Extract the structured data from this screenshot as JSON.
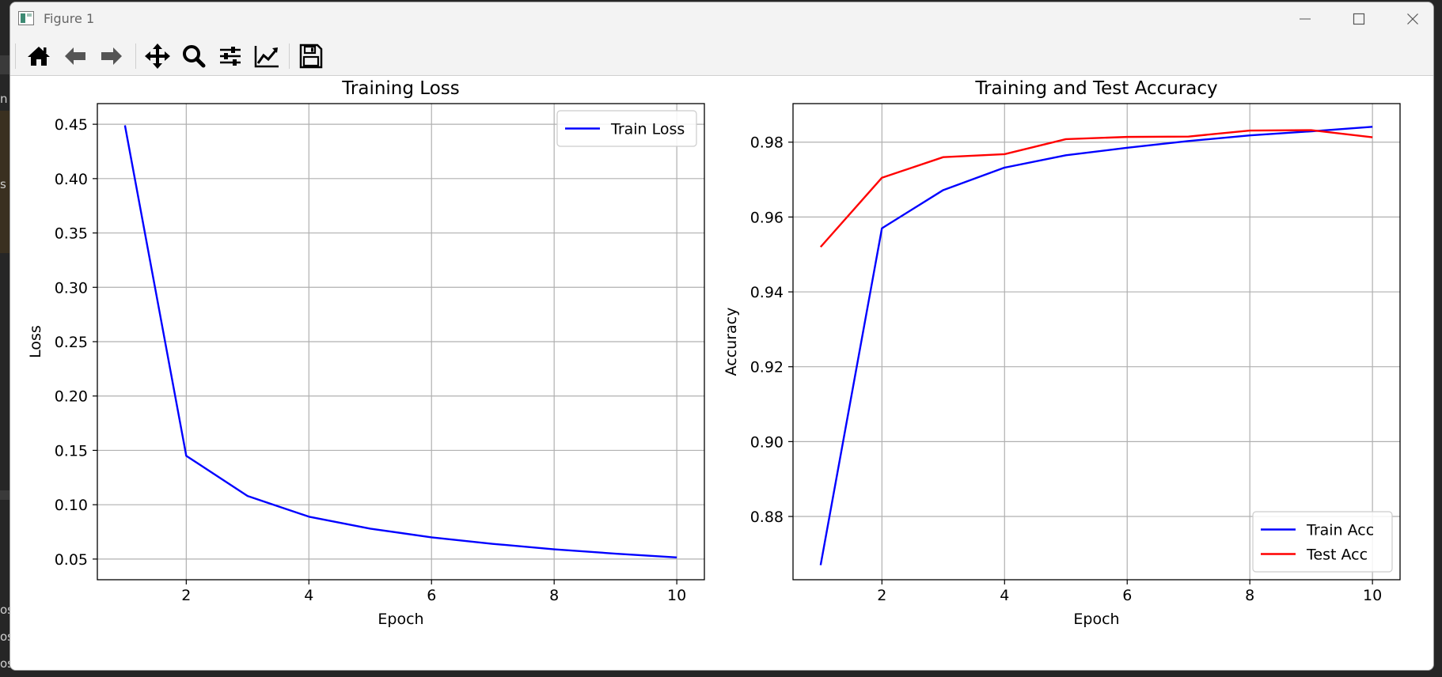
{
  "window": {
    "title": "Figure 1"
  },
  "desktop_fragments": [
    "n",
    "s",
    "os",
    "os",
    "os"
  ],
  "toolbar": {
    "tools": [
      {
        "name": "home",
        "icon": "home-icon"
      },
      {
        "name": "back",
        "icon": "arrow-left-icon"
      },
      {
        "name": "forward",
        "icon": "arrow-right-icon"
      },
      {
        "name": "pan",
        "icon": "move-icon"
      },
      {
        "name": "zoom",
        "icon": "magnifier-icon"
      },
      {
        "name": "configure-subplots",
        "icon": "sliders-icon"
      },
      {
        "name": "edit-axis",
        "icon": "line-chart-icon"
      },
      {
        "name": "save",
        "icon": "floppy-disk-icon"
      }
    ]
  },
  "colors": {
    "train": "#0000ff",
    "test": "#ff0000",
    "grid": "#b0b0b0"
  },
  "chart_data": [
    {
      "type": "line",
      "title": "Training Loss",
      "xlabel": "Epoch",
      "ylabel": "Loss",
      "xlim": [
        0.55,
        10.45
      ],
      "ylim": [
        0.031,
        0.469
      ],
      "xticks": [
        2,
        4,
        6,
        8,
        10
      ],
      "yticks": [
        0.05,
        0.1,
        0.15,
        0.2,
        0.25,
        0.3,
        0.35,
        0.4,
        0.45
      ],
      "ytick_labels": [
        "0.05",
        "0.10",
        "0.15",
        "0.20",
        "0.25",
        "0.30",
        "0.35",
        "0.40",
        "0.45"
      ],
      "grid": true,
      "legend": "upper-right",
      "x": [
        1,
        2,
        3,
        4,
        5,
        6,
        7,
        8,
        9,
        10
      ],
      "series": [
        {
          "name": "Train Loss",
          "color": "#0000ff",
          "values": [
            0.449,
            0.145,
            0.108,
            0.089,
            0.078,
            0.07,
            0.064,
            0.059,
            0.055,
            0.0515
          ]
        }
      ]
    },
    {
      "type": "line",
      "title": "Training and Test Accuracy",
      "xlabel": "Epoch",
      "ylabel": "Accuracy",
      "xlim": [
        0.55,
        10.45
      ],
      "ylim": [
        0.8631,
        0.9903
      ],
      "xticks": [
        2,
        4,
        6,
        8,
        10
      ],
      "yticks": [
        0.88,
        0.9,
        0.92,
        0.94,
        0.96,
        0.98
      ],
      "ytick_labels": [
        "0.88",
        "0.90",
        "0.92",
        "0.94",
        "0.96",
        "0.98"
      ],
      "grid": true,
      "legend": "lower-right",
      "x": [
        1,
        2,
        3,
        4,
        5,
        6,
        7,
        8,
        9,
        10
      ],
      "series": [
        {
          "name": "Train Acc",
          "color": "#0000ff",
          "values": [
            0.867,
            0.957,
            0.9672,
            0.9732,
            0.9765,
            0.9785,
            0.9803,
            0.9818,
            0.9829,
            0.9841
          ]
        },
        {
          "name": "Test Acc",
          "color": "#ff0000",
          "values": [
            0.952,
            0.9705,
            0.976,
            0.9768,
            0.9808,
            0.9814,
            0.9815,
            0.9831,
            0.9832,
            0.9813
          ]
        }
      ]
    }
  ]
}
